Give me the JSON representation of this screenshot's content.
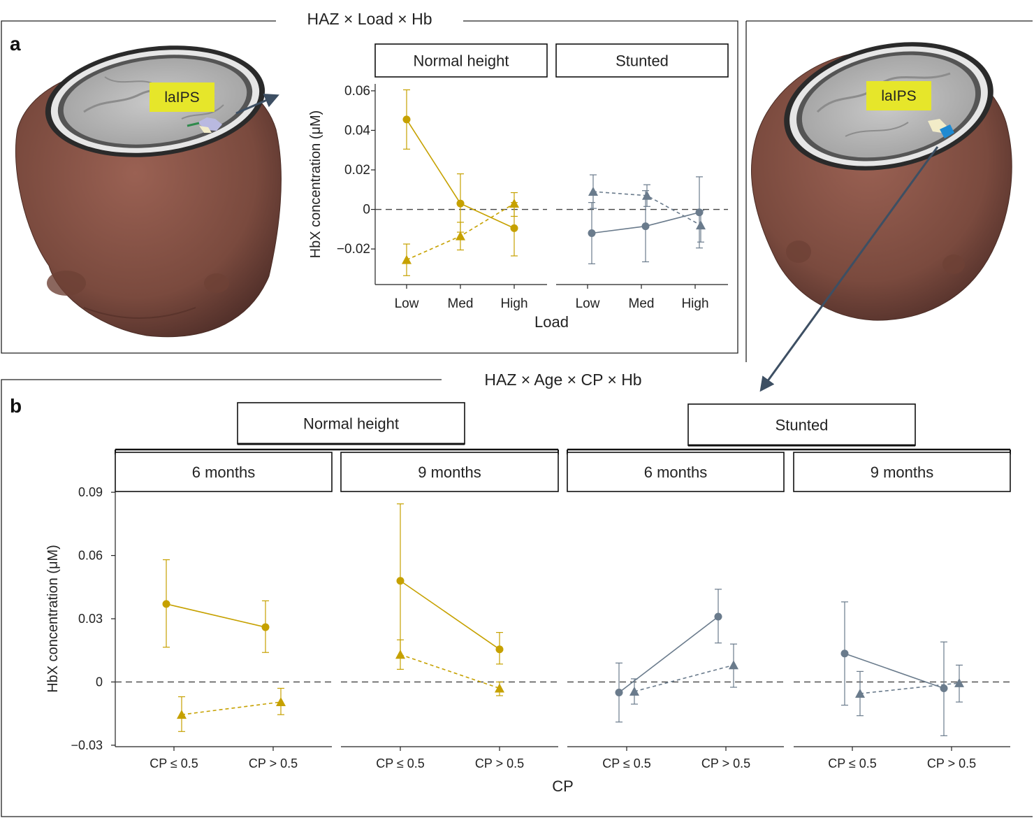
{
  "panel_a": {
    "label": "a",
    "title": "HAZ × Load × Hb",
    "roi_label": "laIPS",
    "roi_label_right": "laIPS"
  },
  "panel_b": {
    "label": "b",
    "title": "HAZ × Age × CP × Hb"
  },
  "colors": {
    "normal_height": "#c6a100",
    "stunted": "#6a7b8c",
    "brain_skin": "#7a4a3e",
    "roi_box": "#e6e62a",
    "arrow": "#3d4f63"
  },
  "chart_data": [
    {
      "type": "line",
      "panel": "a",
      "ylabel": "HbX concentration (μM)",
      "xlabel": "Load",
      "ylim": [
        -0.038,
        0.0635
      ],
      "yticks": [
        0.06,
        0.04,
        0.02,
        0,
        -0.02
      ],
      "ytick_labels": [
        "0.06",
        "0.04",
        "0.02",
        "0",
        "−0.02"
      ],
      "facets": [
        {
          "name": "Normal height",
          "color_key": "normal_height",
          "categories": [
            "Low",
            "Med",
            "High"
          ],
          "series": [
            {
              "marker": "circle",
              "dash": false,
              "values": [
                0.0455,
                0.003,
                -0.0095
              ],
              "err_low": [
                0.0305,
                -0.0115,
                -0.0235
              ],
              "err_high": [
                0.0605,
                0.018,
                0.0035
              ]
            },
            {
              "marker": "triangle",
              "dash": true,
              "values": [
                -0.0255,
                -0.0135,
                0.003
              ],
              "err_low": [
                -0.0335,
                -0.0205,
                -0.0035
              ],
              "err_high": [
                -0.0175,
                -0.0065,
                0.0085
              ]
            }
          ]
        },
        {
          "name": "Stunted",
          "color_key": "stunted",
          "categories": [
            "Low",
            "Med",
            "High"
          ],
          "series": [
            {
              "marker": "circle",
              "dash": false,
              "values": [
                -0.012,
                -0.0085,
                -0.0015
              ],
              "err_low": [
                -0.0275,
                -0.0265,
                -0.0195
              ],
              "err_high": [
                0.0035,
                0.0095,
                0.0165
              ]
            },
            {
              "marker": "triangle",
              "dash": true,
              "values": [
                0.009,
                0.007,
                -0.008
              ],
              "err_low": [
                0.0005,
                0.0015,
                -0.0165
              ],
              "err_high": [
                0.0175,
                0.0125,
                -0.0005
              ]
            }
          ]
        }
      ]
    },
    {
      "type": "line",
      "panel": "b",
      "ylabel": "HbX concentration (μM)",
      "xlabel": "CP",
      "ylim": [
        -0.0307,
        0.0907
      ],
      "yticks": [
        0.09,
        0.06,
        0.03,
        0,
        -0.03
      ],
      "ytick_labels": [
        "0.09",
        "0.06",
        "0.03",
        "0",
        "−0.03"
      ],
      "groups": [
        "Normal height",
        "Stunted"
      ],
      "facets": [
        {
          "name": "6 months",
          "group": "Normal height",
          "color_key": "normal_height",
          "categories": [
            "CP ≤ 0.5",
            "CP > 0.5"
          ],
          "series": [
            {
              "marker": "circle",
              "dash": false,
              "values": [
                0.037,
                0.026
              ],
              "err_low": [
                0.0165,
                0.014
              ],
              "err_high": [
                0.058,
                0.0385
              ]
            },
            {
              "marker": "triangle",
              "dash": true,
              "values": [
                -0.0155,
                -0.0095
              ],
              "err_low": [
                -0.0235,
                -0.0155
              ],
              "err_high": [
                -0.007,
                -0.003
              ]
            }
          ]
        },
        {
          "name": "9 months",
          "group": "Normal height",
          "color_key": "normal_height",
          "categories": [
            "CP ≤ 0.5",
            "CP > 0.5"
          ],
          "series": [
            {
              "marker": "circle",
              "dash": false,
              "values": [
                0.048,
                0.0155
              ],
              "err_low": [
                0.012,
                0.0085
              ],
              "err_high": [
                0.0845,
                0.0235
              ]
            },
            {
              "marker": "triangle",
              "dash": true,
              "values": [
                0.013,
                -0.003
              ],
              "err_low": [
                0.006,
                -0.0065
              ],
              "err_high": [
                0.02,
                0.0
              ]
            }
          ]
        },
        {
          "name": "6 months",
          "group": "Stunted",
          "color_key": "stunted",
          "categories": [
            "CP ≤ 0.5",
            "CP > 0.5"
          ],
          "series": [
            {
              "marker": "circle",
              "dash": false,
              "values": [
                -0.005,
                0.031
              ],
              "err_low": [
                -0.019,
                0.0185
              ],
              "err_high": [
                0.009,
                0.044
              ]
            },
            {
              "marker": "triangle",
              "dash": true,
              "values": [
                -0.0045,
                0.008
              ],
              "err_low": [
                -0.0105,
                -0.0025
              ],
              "err_high": [
                0.0015,
                0.018
              ]
            }
          ]
        },
        {
          "name": "9 months",
          "group": "Stunted",
          "color_key": "stunted",
          "categories": [
            "CP ≤ 0.5",
            "CP > 0.5"
          ],
          "series": [
            {
              "marker": "circle",
              "dash": false,
              "values": [
                0.0135,
                -0.003
              ],
              "err_low": [
                -0.011,
                -0.0255
              ],
              "err_high": [
                0.038,
                0.019
              ]
            },
            {
              "marker": "triangle",
              "dash": true,
              "values": [
                -0.0055,
                -0.0005
              ],
              "err_low": [
                -0.016,
                -0.0095
              ],
              "err_high": [
                0.005,
                0.008
              ]
            }
          ]
        }
      ]
    }
  ]
}
